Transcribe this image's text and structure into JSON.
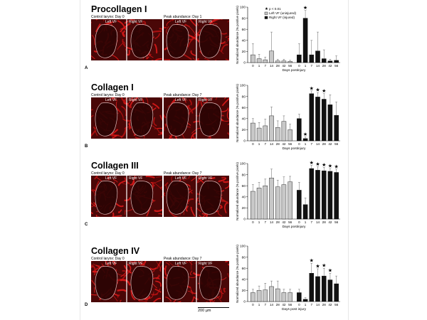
{
  "scale_bar": "200 µm",
  "panels": [
    {
      "letter": "A",
      "title": "Procollagen I",
      "control_caption": "Control larynx: Day 0",
      "peak_caption": "Peak abundance: Day 1",
      "vf_left": "Left VF",
      "vf_right": "Right VF",
      "chart_data": {
        "type": "bar",
        "ylabel": "Normalized abundance (% positive pixels)",
        "xlabel": "Days postinjury",
        "ylim": [
          0,
          100
        ],
        "yticks": [
          0,
          20,
          40,
          60,
          80,
          100
        ],
        "categories": [
          "0",
          "1",
          "7",
          "14",
          "28",
          "42",
          "56"
        ],
        "legend": {
          "note": "p < 0.01",
          "left": "Left VF (uninjured)",
          "right": "Right VF (injured)"
        },
        "series": [
          {
            "name": "Left VF (uninjured)",
            "color": "#c8c8c8",
            "values": [
              14,
              7,
              5,
              21,
              3,
              3,
              2
            ],
            "errors": [
              20,
              8,
              5,
              34,
              3,
              3,
              2
            ]
          },
          {
            "name": "Right VF (injured)",
            "color": "#111111",
            "values": [
              14,
              80,
              14,
              21,
              7,
              3,
              4
            ],
            "errors": [
              20,
              14,
              26,
              34,
              16,
              3,
              8
            ]
          }
        ],
        "significant": [
          1
        ]
      }
    },
    {
      "letter": "B",
      "title": "Collagen I",
      "control_caption": "Control larynx: Day 0",
      "peak_caption": "Peak abundance: Day 7",
      "vf_left": "Left VF",
      "vf_right": "Right VF",
      "chart_data": {
        "type": "bar",
        "ylabel": "Normalized abundance (% positive pixels)",
        "xlabel": "Days postinjury",
        "ylim": [
          0,
          100
        ],
        "yticks": [
          0,
          20,
          40,
          60,
          80,
          100
        ],
        "categories": [
          "0",
          "1",
          "7",
          "14",
          "28",
          "42",
          "56"
        ],
        "series": [
          {
            "name": "Left VF (uninjured)",
            "color": "#c8c8c8",
            "values": [
              32,
              23,
              27,
              45,
              24,
              35,
              20
            ],
            "errors": [
              8,
              10,
              12,
              16,
              12,
              10,
              10
            ]
          },
          {
            "name": "Right VF (injured)",
            "color": "#111111",
            "values": [
              40,
              4,
              85,
              79,
              75,
              65,
              46
            ],
            "errors": [
              8,
              3,
              5,
              8,
              10,
              18,
              24
            ]
          }
        ],
        "significant": [
          1,
          2,
          3,
          4
        ]
      }
    },
    {
      "letter": "C",
      "title": "Collagen III",
      "control_caption": "Control larynx: Day 0",
      "peak_caption": "Peak abundance: Day 7",
      "vf_left": "Left VF",
      "vf_right": "Right VF",
      "chart_data": {
        "type": "bar",
        "ylabel": "Normalized abundance (% positive pixels)",
        "xlabel": "Days postinjury",
        "ylim": [
          0,
          100
        ],
        "yticks": [
          0,
          20,
          40,
          60,
          80,
          100
        ],
        "categories": [
          "0",
          "1",
          "7",
          "14",
          "28",
          "42",
          "56"
        ],
        "series": [
          {
            "name": "Left VF (uninjured)",
            "color": "#c8c8c8",
            "values": [
              50,
              56,
              60,
              74,
              58,
              62,
              67
            ],
            "errors": [
              12,
              10,
              12,
              16,
              12,
              14,
              10
            ]
          },
          {
            "name": "Right VF (injured)",
            "color": "#111111",
            "values": [
              52,
              26,
              91,
              88,
              87,
              86,
              84
            ],
            "errors": [
              14,
              12,
              6,
              6,
              6,
              5,
              6
            ]
          }
        ],
        "significant": [
          2,
          3,
          4,
          5,
          6
        ]
      }
    },
    {
      "letter": "D",
      "title": "Collagen IV",
      "control_caption": "Control larynx: Day 0",
      "peak_caption": "Peak abundance: Day 7",
      "vf_left": "Left VF",
      "vf_right": "Right VF",
      "chart_data": {
        "type": "bar",
        "ylabel": "Normalized abundance (% positive pixels)",
        "xlabel": "Days post injury",
        "ylim": [
          0,
          100
        ],
        "yticks": [
          0,
          20,
          40,
          60,
          80,
          100
        ],
        "categories": [
          "0",
          "1",
          "7",
          "14",
          "28",
          "42",
          "56"
        ],
        "series": [
          {
            "name": "Left VF (uninjured)",
            "color": "#c8c8c8",
            "values": [
              16,
              20,
              21,
              27,
              23,
              16,
              16
            ],
            "errors": [
              6,
              8,
              12,
              10,
              14,
              6,
              6
            ]
          },
          {
            "name": "Right VF (injured)",
            "color": "#111111",
            "values": [
              16,
              4,
              51,
              45,
              46,
              39,
              32
            ],
            "errors": [
              6,
              3,
              18,
              14,
              14,
              12,
              14
            ]
          }
        ],
        "significant": [
          2,
          3,
          4,
          5
        ]
      }
    }
  ]
}
